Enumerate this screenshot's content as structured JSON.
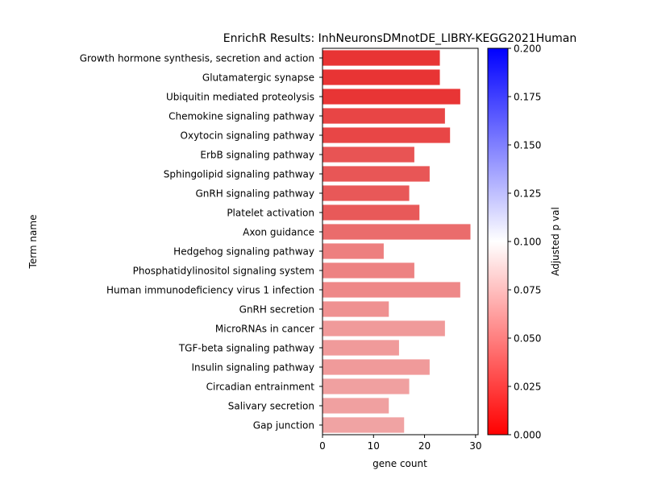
{
  "chart_data": {
    "type": "bar",
    "orientation": "horizontal",
    "title": "EnrichR Results: InhNeuronsDMnotDE_LIBRY-KEGG2021Human",
    "xlabel": "gene count",
    "ylabel": "Term name",
    "xlim": [
      0,
      30.5
    ],
    "xticks": [
      "0",
      "10",
      "20",
      "30"
    ],
    "grid": false,
    "categories": [
      "Growth hormone synthesis, secretion and action",
      "Glutamatergic synapse",
      "Ubiquitin mediated proteolysis",
      "Chemokine signaling pathway",
      "Oxytocin signaling pathway",
      "ErbB signaling pathway",
      "Sphingolipid signaling pathway",
      "GnRH signaling pathway",
      "Platelet activation",
      "Axon guidance",
      "Hedgehog signaling pathway",
      "Phosphatidylinositol signaling system",
      "Human immunodeficiency virus 1 infection",
      "GnRH secretion",
      "MicroRNAs in cancer",
      "TGF-beta signaling pathway",
      "Insulin signaling pathway",
      "Circadian entrainment",
      "Salivary secretion",
      "Gap junction"
    ],
    "values": [
      23,
      23,
      27,
      24,
      25,
      18,
      21,
      17,
      19,
      29,
      12,
      18,
      27,
      13,
      24,
      15,
      21,
      17,
      13,
      16
    ],
    "bar_colors": [
      "#e83434",
      "#e83434",
      "#e83535",
      "#e84545",
      "#e84646",
      "#e85454",
      "#e85656",
      "#e85858",
      "#e85959",
      "#ea6c6c",
      "#ed7f7f",
      "#ed8282",
      "#ee8888",
      "#ef9191",
      "#f09a9a",
      "#f09a9a",
      "#f09a9a",
      "#f0a0a0",
      "#f0a0a0",
      "#f0a3a3"
    ],
    "colorbar": {
      "label": "Adjusted p val",
      "range": [
        0,
        0.2
      ],
      "ticks": [
        "0.000",
        "0.025",
        "0.050",
        "0.075",
        "0.100",
        "0.125",
        "0.150",
        "0.175",
        "0.200"
      ],
      "colormap": [
        "#ff0000",
        "#ffffff",
        "#0000ff"
      ]
    }
  }
}
